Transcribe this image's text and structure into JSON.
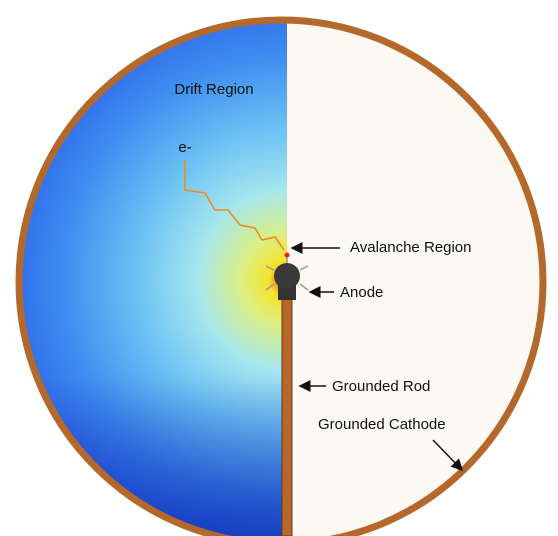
{
  "labels": {
    "drift_region": "Drift Region",
    "electron": "e-",
    "avalanche": "Avalanche Region",
    "anode": "Anode",
    "rod": "Grounded Rod",
    "cathode": "Grounded Cathode"
  }
}
